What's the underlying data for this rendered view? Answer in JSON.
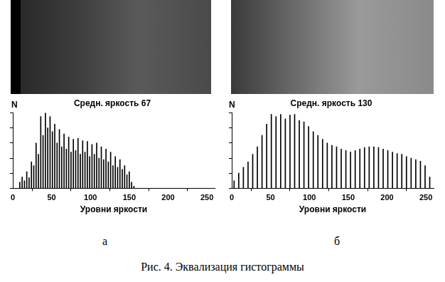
{
  "chart_data": [
    {
      "type": "bar",
      "title": "Средн. яркость 67",
      "x_label": "Уровни яркости",
      "y_label": "N",
      "x": [
        9,
        12,
        15,
        18,
        21,
        24,
        27,
        30,
        33,
        36,
        39,
        42,
        45,
        48,
        51,
        54,
        57,
        60,
        63,
        66,
        69,
        72,
        75,
        78,
        81,
        84,
        87,
        90,
        93,
        96,
        99,
        102,
        105,
        108,
        111,
        114,
        117,
        120,
        123,
        126,
        129,
        132,
        135,
        138,
        141,
        144,
        147,
        150,
        153,
        156
      ],
      "values": [
        8,
        15,
        10,
        22,
        14,
        35,
        30,
        60,
        45,
        95,
        70,
        100,
        80,
        95,
        75,
        85,
        60,
        78,
        55,
        72,
        52,
        68,
        48,
        65,
        50,
        66,
        45,
        63,
        48,
        62,
        42,
        58,
        45,
        60,
        40,
        55,
        38,
        52,
        35,
        48,
        30,
        42,
        28,
        38,
        25,
        30,
        18,
        22,
        8,
        3
      ],
      "color": "#000000",
      "xlim": [
        0,
        260
      ],
      "xticks": [
        0,
        50,
        100,
        150,
        200,
        250
      ],
      "ylim": [
        0,
        100
      ],
      "yticks": [
        0,
        20,
        40,
        60,
        80,
        100
      ],
      "grid": false,
      "tick_labels": "x"
    },
    {
      "type": "bar",
      "title": "Средн. яркость 130",
      "x_label": "Уровни яркости",
      "y_label": "N",
      "x": [
        3,
        9,
        15,
        21,
        27,
        33,
        39,
        45,
        51,
        57,
        63,
        69,
        75,
        81,
        87,
        93,
        99,
        105,
        111,
        117,
        123,
        129,
        135,
        141,
        147,
        153,
        159,
        165,
        171,
        177,
        183,
        189,
        195,
        201,
        207,
        213,
        219,
        225,
        231,
        237,
        243,
        249,
        255
      ],
      "values": [
        10,
        20,
        28,
        35,
        45,
        55,
        70,
        85,
        98,
        95,
        98,
        92,
        97,
        98,
        90,
        88,
        82,
        75,
        70,
        65,
        60,
        57,
        55,
        52,
        50,
        48,
        50,
        52,
        54,
        55,
        55,
        54,
        52,
        50,
        48,
        46,
        45,
        42,
        40,
        38,
        36,
        30,
        15
      ],
      "color": "#000000",
      "xlim": [
        0,
        260
      ],
      "xticks": [
        0,
        50,
        100,
        150,
        200,
        250
      ],
      "ylim": [
        0,
        100
      ],
      "yticks": [
        0,
        20,
        40,
        60,
        80,
        100
      ],
      "grid": false,
      "tick_labels": "x"
    }
  ],
  "panel_labels": [
    "а",
    "б"
  ],
  "caption": "Рис. 4. Эквализация гистограммы"
}
